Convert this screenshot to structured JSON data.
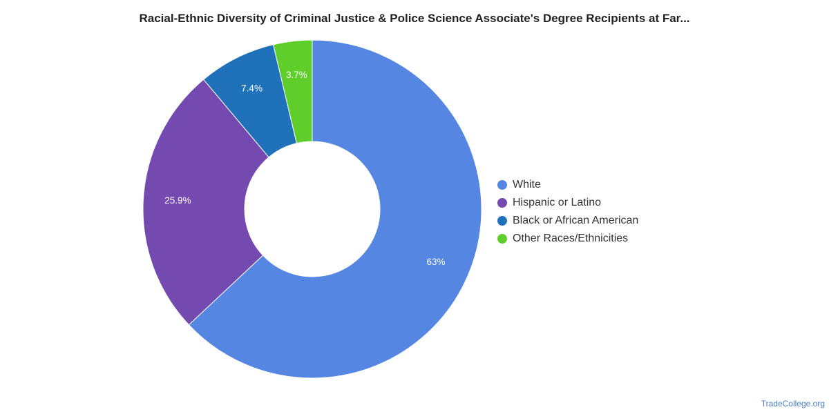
{
  "chart_data": {
    "type": "pie",
    "donut": true,
    "title": "Racial-Ethnic Diversity of Criminal Justice & Police Science Associate's Degree Recipients at Far...",
    "legend_position": "right",
    "slices": [
      {
        "name": "White",
        "value": 63,
        "label": "63%",
        "color": "#5486e2"
      },
      {
        "name": "Hispanic or Latino",
        "value": 25.9,
        "label": "25.9%",
        "color": "#7449b0"
      },
      {
        "name": "Black or African American",
        "value": 7.4,
        "label": "7.4%",
        "color": "#1f72b9"
      },
      {
        "name": "Other Races/Ethnicities",
        "value": 3.7,
        "label": "3.7%",
        "color": "#5fce2a"
      }
    ]
  },
  "credit": "TradeCollege.org"
}
